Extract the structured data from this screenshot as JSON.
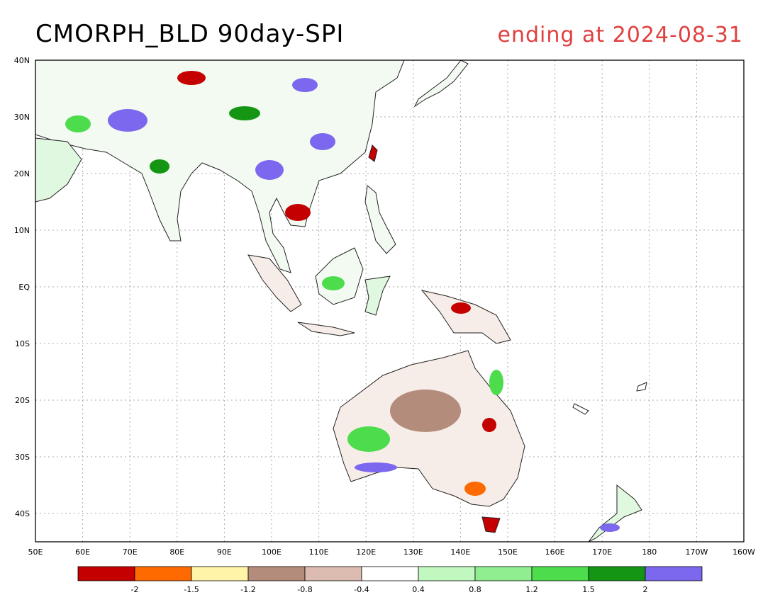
{
  "header": {
    "product": "CMORPH_BLD 90day-SPI",
    "period": "ending at 2024-08-31"
  },
  "map": {
    "lon_range": [
      50,
      200
    ],
    "lat_range": [
      -45,
      40
    ],
    "lon_labels": [
      "50E",
      "60E",
      "70E",
      "80E",
      "90E",
      "100E",
      "110E",
      "120E",
      "130E",
      "140E",
      "150E",
      "160E",
      "170E",
      "180",
      "170W",
      "160W"
    ],
    "lat_labels": [
      "40N",
      "30N",
      "20N",
      "10N",
      "EQ",
      "10S",
      "20S",
      "30S",
      "40S"
    ],
    "gridlines": true
  },
  "legend": {
    "colors": [
      "#c40000",
      "#ff6a00",
      "#fff4a8",
      "#b48c7c",
      "#dcbcb0",
      "#ffffff",
      "#c0f8c0",
      "#90ee90",
      "#4cdc4c",
      "#149614",
      "#7b68ee"
    ],
    "labels": [
      "-2",
      "-1.5",
      "-1.2",
      "-0.8",
      "-0.4",
      "0.4",
      "0.8",
      "1.2",
      "1.5",
      "2"
    ]
  }
}
